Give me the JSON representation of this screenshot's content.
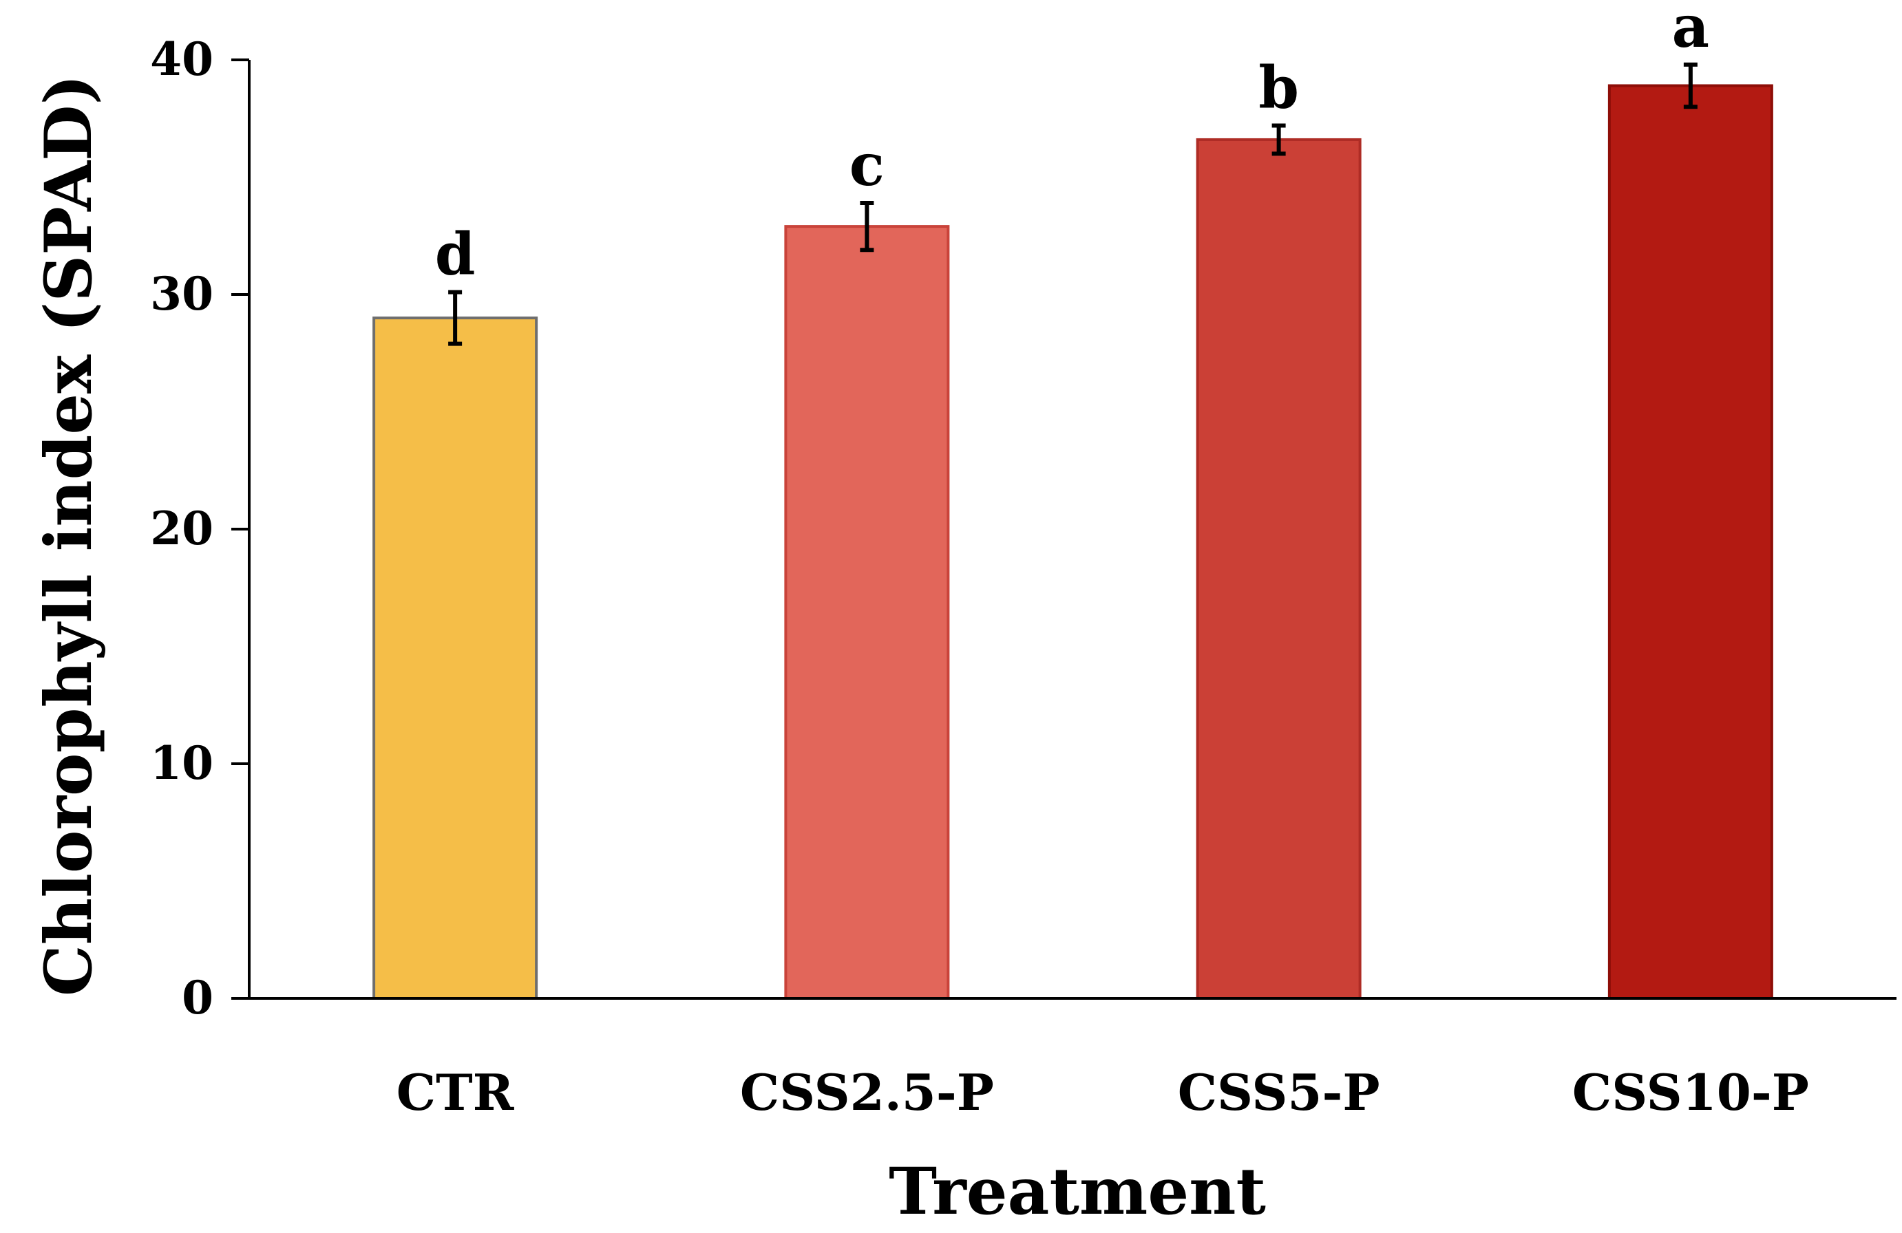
{
  "chart_data": {
    "type": "bar",
    "title": "",
    "xlabel": "Treatment",
    "ylabel": "Chlorophyll index (SPAD)",
    "ylim": [
      0,
      40
    ],
    "yticks": [
      0,
      10,
      20,
      30,
      40
    ],
    "ytick_labels": [
      "0",
      "10",
      "20",
      "30",
      "40"
    ],
    "categories": [
      "CTR",
      "CSS2.5-P",
      "CSS5-P",
      "CSS10-P"
    ],
    "values": [
      29.0,
      32.9,
      36.6,
      38.9
    ],
    "errors": [
      1.1,
      1.0,
      0.6,
      0.9
    ],
    "significance_letters": [
      "d",
      "c",
      "b",
      "a"
    ],
    "colors": [
      "#F5BE48",
      "#E2665A",
      "#CB4036",
      "#B31A12"
    ],
    "edge_colors": [
      "#6E6E6E",
      "#C9433A",
      "#AE2C25",
      "#8E0E08"
    ],
    "grid": false,
    "legend": "none"
  }
}
